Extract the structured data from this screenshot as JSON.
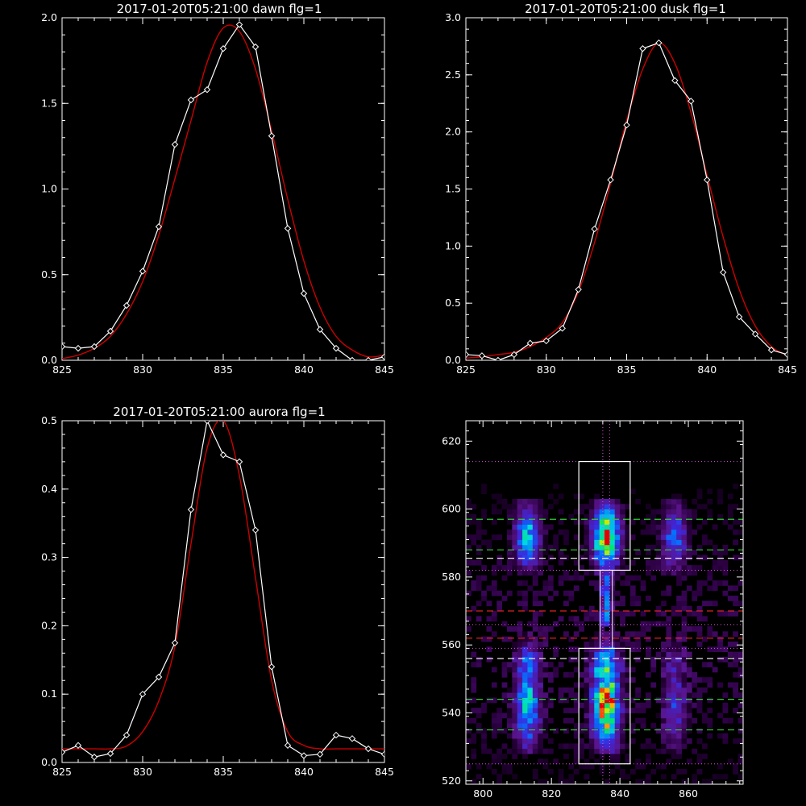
{
  "colors": {
    "background": "#000000",
    "axes": "#ffffff",
    "data_line": "#ffffff",
    "fit_line": "#cc0000",
    "green_dash": "#33cc33",
    "red_dash": "#dd2222",
    "white_dash": "#ffffff",
    "magenta_dot": "#dd55dd"
  },
  "chart_data": [
    {
      "type": "line",
      "title": "2017-01-20T05:21:00 dawn flg=1",
      "xlim": [
        825,
        845
      ],
      "ylim": [
        0,
        2.0
      ],
      "xticks": [
        "825",
        "830",
        "835",
        "840",
        "845"
      ],
      "yticks": [
        "0.0",
        "0.5",
        "1.0",
        "1.5",
        "2.0"
      ],
      "series": [
        {
          "x": [
            825,
            826,
            827,
            828,
            829,
            830,
            831,
            832,
            833,
            834,
            835,
            836,
            837,
            838,
            839,
            840,
            841,
            842,
            843,
            844,
            845
          ],
          "values": [
            0.08,
            0.07,
            0.08,
            0.17,
            0.32,
            0.52,
            0.78,
            1.26,
            1.52,
            1.58,
            1.82,
            1.96,
            1.83,
            1.31,
            0.77,
            0.39,
            0.18,
            0.07,
            0.0,
            0.0,
            0.02
          ]
        },
        {
          "x": [
            825,
            826,
            827,
            828,
            829,
            830,
            831,
            832,
            833,
            834,
            835,
            836,
            837,
            838,
            839,
            840,
            841,
            842,
            843,
            844,
            845
          ],
          "values": [
            0.01,
            0.03,
            0.07,
            0.14,
            0.27,
            0.46,
            0.73,
            1.06,
            1.4,
            1.74,
            1.94,
            1.92,
            1.7,
            1.34,
            0.94,
            0.58,
            0.31,
            0.14,
            0.06,
            0.02,
            0.03
          ]
        }
      ]
    },
    {
      "type": "line",
      "title": "2017-01-20T05:21:00 dusk flg=1",
      "xlim": [
        825,
        845
      ],
      "ylim": [
        0,
        3.0
      ],
      "xticks": [
        "825",
        "830",
        "835",
        "840",
        "845"
      ],
      "yticks": [
        "0.0",
        "0.5",
        "1.0",
        "1.5",
        "2.0",
        "2.5",
        "3.0"
      ],
      "series": [
        {
          "x": [
            825,
            826,
            827,
            828,
            829,
            830,
            831,
            832,
            833,
            834,
            835,
            836,
            837,
            838,
            839,
            840,
            841,
            842,
            843,
            844,
            845
          ],
          "values": [
            0.05,
            0.04,
            0.0,
            0.05,
            0.15,
            0.17,
            0.28,
            0.62,
            1.15,
            1.58,
            2.06,
            2.73,
            2.78,
            2.45,
            2.27,
            1.58,
            0.77,
            0.38,
            0.23,
            0.09,
            0.05
          ]
        },
        {
          "x": [
            825,
            826,
            827,
            828,
            829,
            830,
            831,
            832,
            833,
            834,
            835,
            836,
            837,
            838,
            839,
            840,
            841,
            842,
            843,
            844,
            845
          ],
          "values": [
            0.02,
            0.03,
            0.05,
            0.07,
            0.12,
            0.2,
            0.33,
            0.6,
            1.03,
            1.55,
            2.1,
            2.55,
            2.78,
            2.6,
            2.17,
            1.62,
            1.08,
            0.62,
            0.3,
            0.12,
            0.04
          ]
        }
      ]
    },
    {
      "type": "line",
      "title": "2017-01-20T05:21:00 aurora flg=1",
      "xlim": [
        825,
        845
      ],
      "ylim": [
        0,
        0.5
      ],
      "xticks": [
        "825",
        "830",
        "835",
        "840",
        "845"
      ],
      "yticks": [
        "0.0",
        "0.1",
        "0.2",
        "0.3",
        "0.4",
        "0.5"
      ],
      "series": [
        {
          "x": [
            825,
            826,
            827,
            828,
            829,
            830,
            831,
            832,
            833,
            834,
            835,
            836,
            837,
            838,
            839,
            840,
            841,
            842,
            843,
            844,
            845
          ],
          "values": [
            0.015,
            0.025,
            0.008,
            0.013,
            0.04,
            0.1,
            0.125,
            0.175,
            0.37,
            0.5,
            0.45,
            0.44,
            0.34,
            0.14,
            0.025,
            0.01,
            0.012,
            0.04,
            0.035,
            0.02,
            0.012
          ]
        },
        {
          "x": [
            825,
            826,
            827,
            828,
            829,
            830,
            831,
            832,
            833,
            834,
            835,
            836,
            837,
            838,
            839,
            840,
            841,
            842,
            843,
            844,
            845
          ],
          "values": [
            0.02,
            0.02,
            0.02,
            0.02,
            0.024,
            0.045,
            0.09,
            0.17,
            0.32,
            0.46,
            0.5,
            0.42,
            0.27,
            0.12,
            0.045,
            0.025,
            0.02,
            0.02,
            0.02,
            0.02,
            0.02
          ]
        }
      ]
    },
    {
      "type": "heatmap",
      "title": "",
      "xlim": [
        795,
        876
      ],
      "ylim": [
        519,
        626
      ],
      "xticks": [
        "800",
        "820",
        "840",
        "860"
      ],
      "yticks": [
        "520",
        "540",
        "560",
        "580",
        "600",
        "620"
      ],
      "boxes": [
        {
          "x": [
            828,
            843
          ],
          "y": [
            525,
            559
          ]
        },
        {
          "x": [
            828,
            843
          ],
          "y": [
            582,
            614
          ]
        }
      ],
      "vertical_lines": [
        835,
        837
      ],
      "green_dashed_y": [
        597,
        588,
        544,
        535
      ],
      "white_dashed_y": [
        585.5,
        556
      ],
      "red_dashed_y": [
        570,
        562
      ],
      "magenta_dotted_y": [
        614,
        582,
        566,
        559,
        525
      ]
    }
  ]
}
